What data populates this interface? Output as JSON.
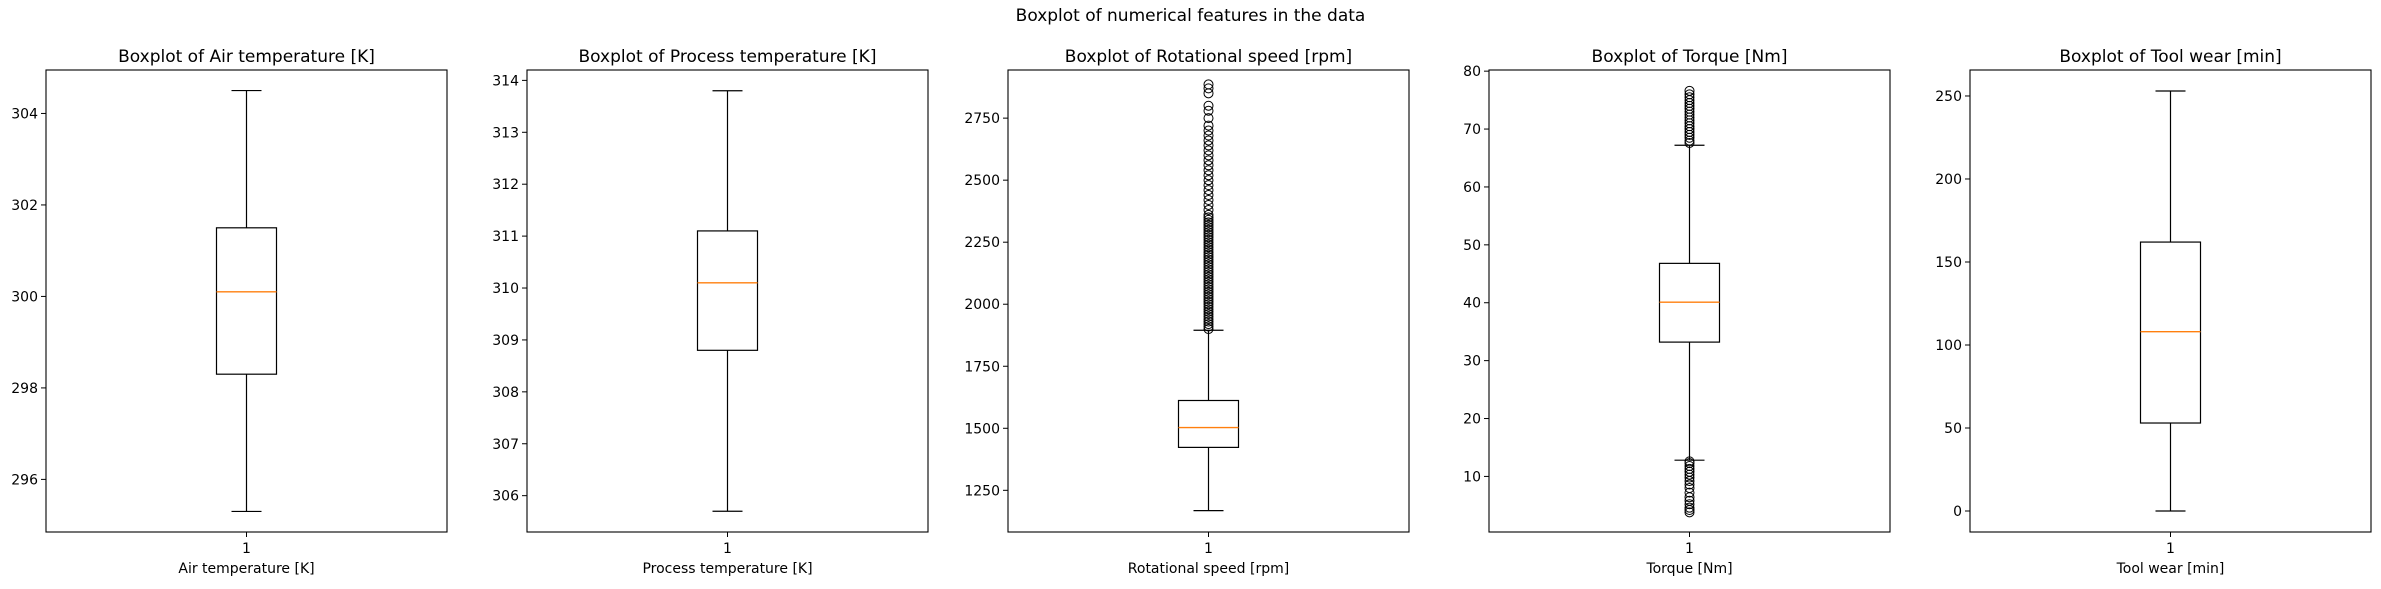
{
  "figure": {
    "suptitle": "Boxplot of numerical features in the data"
  },
  "chart_data": [
    {
      "type": "boxplot",
      "title": "Boxplot of Air temperature [K]",
      "xlabel": "Air temperature [K]",
      "ylabel": "",
      "categories": [
        "1"
      ],
      "ylim": [
        294.85,
        304.95
      ],
      "yticks": [
        296,
        298,
        300,
        302,
        304
      ],
      "box": {
        "whisker_low": 295.3,
        "q1": 298.3,
        "median": 300.1,
        "q3": 301.5,
        "whisker_high": 304.5
      },
      "outliers": []
    },
    {
      "type": "boxplot",
      "title": "Boxplot of Process temperature [K]",
      "xlabel": "Process temperature [K]",
      "ylabel": "",
      "categories": [
        "1"
      ],
      "ylim": [
        305.3,
        314.2
      ],
      "yticks": [
        306,
        307,
        308,
        309,
        310,
        311,
        312,
        313,
        314
      ],
      "box": {
        "whisker_low": 305.7,
        "q1": 308.8,
        "median": 310.1,
        "q3": 311.1,
        "whisker_high": 313.8
      },
      "outliers": []
    },
    {
      "type": "boxplot",
      "title": "Boxplot of Rotational speed [rpm]",
      "xlabel": "Rotational speed [rpm]",
      "ylabel": "",
      "categories": [
        "1"
      ],
      "ylim": [
        1082,
        2944
      ],
      "yticks": [
        1250,
        1500,
        1750,
        2000,
        2250,
        2500,
        2750
      ],
      "box": {
        "whisker_low": 1168,
        "q1": 1423,
        "median": 1503,
        "q3": 1612,
        "whisker_high": 1895
      },
      "outliers": [
        1900,
        1910,
        1920,
        1930,
        1940,
        1950,
        1960,
        1970,
        1980,
        1990,
        2000,
        2010,
        2020,
        2030,
        2040,
        2050,
        2060,
        2070,
        2080,
        2090,
        2100,
        2110,
        2120,
        2130,
        2140,
        2150,
        2160,
        2170,
        2180,
        2190,
        2200,
        2210,
        2220,
        2230,
        2240,
        2250,
        2260,
        2270,
        2280,
        2290,
        2300,
        2310,
        2320,
        2330,
        2340,
        2350,
        2360,
        2380,
        2400,
        2420,
        2440,
        2460,
        2480,
        2500,
        2520,
        2540,
        2560,
        2580,
        2600,
        2620,
        2640,
        2660,
        2680,
        2700,
        2720,
        2750,
        2780,
        2800,
        2850,
        2870,
        2886
      ]
    },
    {
      "type": "boxplot",
      "title": "Boxplot of Torque [Nm]",
      "xlabel": "Torque [Nm]",
      "ylabel": "",
      "categories": [
        "1"
      ],
      "ylim": [
        0.4,
        80.2
      ],
      "yticks": [
        10,
        20,
        30,
        40,
        50,
        60,
        70,
        80
      ],
      "box": {
        "whisker_low": 12.8,
        "q1": 33.2,
        "median": 40.1,
        "q3": 46.8,
        "whisker_high": 67.2
      },
      "outliers": [
        3.8,
        4.2,
        4.6,
        5.2,
        5.8,
        6.4,
        7.2,
        8.0,
        8.6,
        9.2,
        9.8,
        10.3,
        10.8,
        11.3,
        11.8,
        12.3,
        12.6,
        67.6,
        68.0,
        68.5,
        69.0,
        69.5,
        70.0,
        70.5,
        71.0,
        71.5,
        72.0,
        72.5,
        73.0,
        73.5,
        74.0,
        74.5,
        75.0,
        75.5,
        76.0,
        76.6
      ]
    },
    {
      "type": "boxplot",
      "title": "Boxplot of Tool wear [min]",
      "xlabel": "Tool wear [min]",
      "ylabel": "",
      "categories": [
        "1"
      ],
      "ylim": [
        -12.65,
        265.65
      ],
      "yticks": [
        0,
        50,
        100,
        150,
        200,
        250
      ],
      "box": {
        "whisker_low": 0,
        "q1": 53,
        "median": 108,
        "q3": 162,
        "whisker_high": 253
      },
      "outliers": []
    }
  ],
  "colors": {
    "median": "#ff7f0e",
    "box": "#000000",
    "outlier_edge": "#000000"
  }
}
